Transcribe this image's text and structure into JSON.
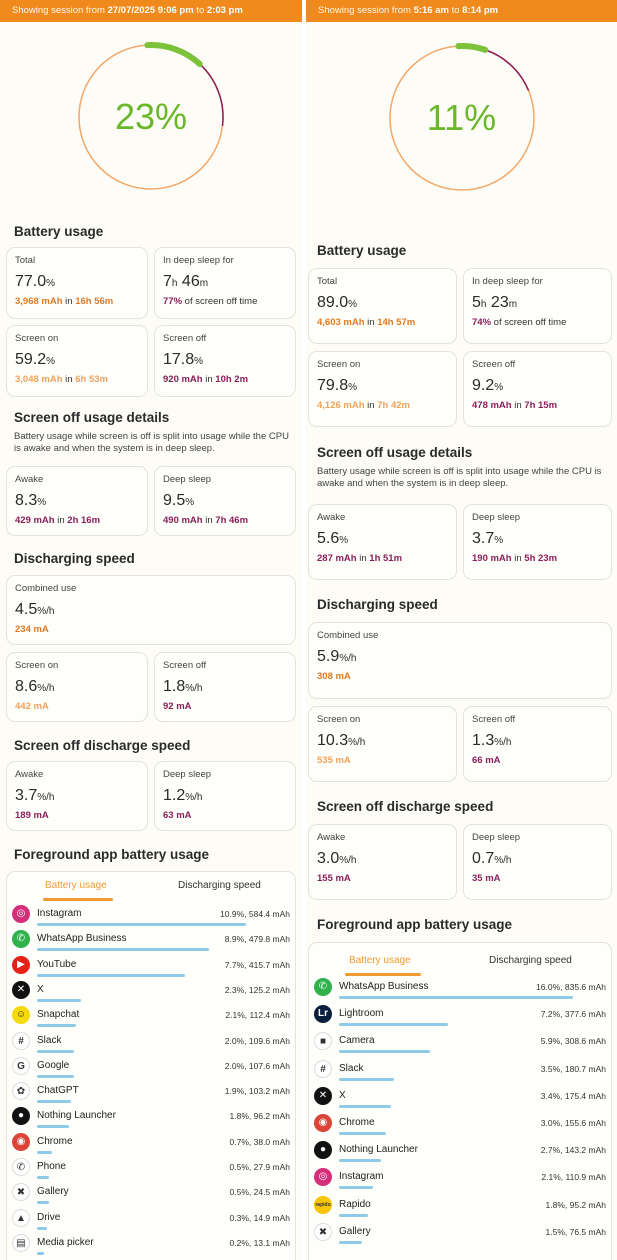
{
  "colors": {
    "orange": "#f08a1c",
    "ring_green": "#7cc23a",
    "ring_orange": "#f2a868",
    "ring_magenta": "#8a1e58",
    "bar_blue": "#8ecbe6"
  },
  "left": {
    "session_prefix": "Showing session from ",
    "session_start": "27/07/2025 9:06 pm",
    "session_to": " to ",
    "session_end": "2:03 pm",
    "ring_percent": "23%",
    "ring_fraction": 0.23,
    "battery_usage_title": "Battery usage",
    "total": {
      "label": "Total",
      "value": "77.0",
      "unit": "%",
      "mah": "3,968 mAh",
      "in": " in ",
      "dur": "16h 56m"
    },
    "deep_sleep": {
      "label": "In deep sleep for",
      "h": "7",
      "hu": "h",
      "m": " 46",
      "mu": "m",
      "pct": "77%",
      "rest": " of screen off time"
    },
    "screen_on": {
      "label": "Screen on",
      "value": "59.2",
      "unit": "%",
      "mah": "3,048 mAh",
      "in": " in ",
      "dur": "6h 53m"
    },
    "screen_off": {
      "label": "Screen off",
      "value": "17.8",
      "unit": "%",
      "mah": "920 mAh",
      "in": " in ",
      "dur": "10h 2m"
    },
    "so_details_title": "Screen off usage details",
    "so_details_desc": "Battery usage while screen is off is split into usage while the CPU is awake and when the system is in deep sleep.",
    "awake": {
      "label": "Awake",
      "value": "8.3",
      "unit": "%",
      "mah": "429 mAh",
      "in": " in ",
      "dur": "2h 16m"
    },
    "deep": {
      "label": "Deep sleep",
      "value": "9.5",
      "unit": "%",
      "mah": "490 mAh",
      "in": " in ",
      "dur": "7h 46m"
    },
    "discharging_title": "Discharging speed",
    "combined": {
      "label": "Combined use",
      "value": "4.5",
      "unit": "%/h",
      "ma": "234 mA"
    },
    "ds_screen_on": {
      "label": "Screen on",
      "value": "8.6",
      "unit": "%/h",
      "ma": "442 mA"
    },
    "ds_screen_off": {
      "label": "Screen off",
      "value": "1.8",
      "unit": "%/h",
      "ma": "92 mA"
    },
    "so_discharge_title": "Screen off discharge speed",
    "sod_awake": {
      "label": "Awake",
      "value": "3.7",
      "unit": "%/h",
      "ma": "189 mA"
    },
    "sod_deep": {
      "label": "Deep sleep",
      "value": "1.2",
      "unit": "%/h",
      "ma": "63 mA"
    },
    "fg_title": "Foreground app battery usage",
    "tab_active": "Battery usage",
    "tab_inactive": "Discharging speed",
    "apps": [
      {
        "name": "Instagram",
        "value": "10.9%, 584.4 mAh",
        "bar": 0.85,
        "icon": "instagram-icon",
        "color": "#d62f7a",
        "glyph": "◎"
      },
      {
        "name": "WhatsApp Business",
        "value": "8.9%, 479.8 mAh",
        "bar": 0.7,
        "icon": "whatsapp-business-icon",
        "color": "#2fb24c",
        "glyph": "✆"
      },
      {
        "name": "YouTube",
        "value": "7.7%, 415.7 mAh",
        "bar": 0.6,
        "icon": "youtube-icon",
        "color": "#e62117",
        "glyph": "▶"
      },
      {
        "name": "X",
        "value": "2.3%, 125.2 mAh",
        "bar": 0.18,
        "icon": "x-icon",
        "color": "#111111",
        "glyph": "✕"
      },
      {
        "name": "Snapchat",
        "value": "2.1%, 112.4 mAh",
        "bar": 0.16,
        "icon": "snapchat-icon",
        "color": "#f5d90a",
        "glyph": "☺"
      },
      {
        "name": "Slack",
        "value": "2.0%, 109.6 mAh",
        "bar": 0.15,
        "icon": "slack-icon",
        "color": "#ffffff",
        "glyph": "#"
      },
      {
        "name": "Google",
        "value": "2.0%, 107.6 mAh",
        "bar": 0.15,
        "icon": "google-icon",
        "color": "#ffffff",
        "glyph": "G"
      },
      {
        "name": "ChatGPT",
        "value": "1.9%, 103.2 mAh",
        "bar": 0.14,
        "icon": "chatgpt-icon",
        "color": "#ffffff",
        "glyph": "✿"
      },
      {
        "name": "Nothing Launcher",
        "value": "1.8%, 96.2 mAh",
        "bar": 0.13,
        "icon": "nothing-launcher-icon",
        "color": "#111111",
        "glyph": "●"
      },
      {
        "name": "Chrome",
        "value": "0.7%, 38.0 mAh",
        "bar": 0.06,
        "icon": "chrome-icon",
        "color": "#db4437",
        "glyph": "◉"
      },
      {
        "name": "Phone",
        "value": "0.5%, 27.9 mAh",
        "bar": 0.05,
        "icon": "phone-icon",
        "color": "#ffffff",
        "glyph": "✆"
      },
      {
        "name": "Gallery",
        "value": "0.5%, 24.5 mAh",
        "bar": 0.05,
        "icon": "gallery-icon",
        "color": "#ffffff",
        "glyph": "✖"
      },
      {
        "name": "Drive",
        "value": "0.3%, 14.9 mAh",
        "bar": 0.04,
        "icon": "drive-icon",
        "color": "#ffffff",
        "glyph": "▲"
      },
      {
        "name": "Media picker",
        "value": "0.2%, 13.1 mAh",
        "bar": 0.03,
        "icon": "media-picker-icon",
        "color": "#ffffff",
        "glyph": "▤"
      }
    ]
  },
  "right": {
    "session_prefix": "Showing session from ",
    "session_start": "5:16 am",
    "session_to": " to ",
    "session_end": "8:14 pm",
    "ring_percent": "11%",
    "ring_fraction": 0.11,
    "battery_usage_title": "Battery usage",
    "total": {
      "label": "Total",
      "value": "89.0",
      "unit": "%",
      "mah": "4,603 mAh",
      "in": " in ",
      "dur": "14h 57m"
    },
    "deep_sleep": {
      "label": "In deep sleep for",
      "h": "5",
      "hu": "h",
      "m": " 23",
      "mu": "m",
      "pct": "74%",
      "rest": " of screen off time"
    },
    "screen_on": {
      "label": "Screen on",
      "value": "79.8",
      "unit": "%",
      "mah": "4,126 mAh",
      "in": " in ",
      "dur": "7h 42m"
    },
    "screen_off": {
      "label": "Screen off",
      "value": "9.2",
      "unit": "%",
      "mah": "478 mAh",
      "in": " in ",
      "dur": "7h 15m"
    },
    "so_details_title": "Screen off usage details",
    "so_details_desc": "Battery usage while screen is off is split into usage while the CPU is awake and when the system is in deep sleep.",
    "awake": {
      "label": "Awake",
      "value": "5.6",
      "unit": "%",
      "mah": "287 mAh",
      "in": " in ",
      "dur": "1h 51m"
    },
    "deep": {
      "label": "Deep sleep",
      "value": "3.7",
      "unit": "%",
      "mah": "190 mAh",
      "in": " in ",
      "dur": "5h 23m"
    },
    "discharging_title": "Discharging speed",
    "combined": {
      "label": "Combined use",
      "value": "5.9",
      "unit": "%/h",
      "ma": "308 mA"
    },
    "ds_screen_on": {
      "label": "Screen on",
      "value": "10.3",
      "unit": "%/h",
      "ma": "535 mA"
    },
    "ds_screen_off": {
      "label": "Screen off",
      "value": "1.3",
      "unit": "%/h",
      "ma": "66 mA"
    },
    "so_discharge_title": "Screen off discharge speed",
    "sod_awake": {
      "label": "Awake",
      "value": "3.0",
      "unit": "%/h",
      "ma": "155 mA"
    },
    "sod_deep": {
      "label": "Deep sleep",
      "value": "0.7",
      "unit": "%/h",
      "ma": "35 mA"
    },
    "fg_title": "Foreground app battery usage",
    "tab_active": "Battery usage",
    "tab_inactive": "Discharging speed",
    "apps": [
      {
        "name": "WhatsApp Business",
        "value": "16.0%, 835.6 mAh",
        "bar": 0.9,
        "icon": "whatsapp-business-icon",
        "color": "#2fb24c",
        "glyph": "✆"
      },
      {
        "name": "Lightroom",
        "value": "7.2%, 377.6 mAh",
        "bar": 0.42,
        "icon": "lightroom-icon",
        "color": "#0a1f3c",
        "glyph": "Lr"
      },
      {
        "name": "Camera",
        "value": "5.9%, 308.6 mAh",
        "bar": 0.35,
        "icon": "camera-icon",
        "color": "#ffffff",
        "glyph": "■"
      },
      {
        "name": "Slack",
        "value": "3.5%, 180.7 mAh",
        "bar": 0.21,
        "icon": "slack-icon",
        "color": "#ffffff",
        "glyph": "#"
      },
      {
        "name": "X",
        "value": "3.4%, 175.4 mAh",
        "bar": 0.2,
        "icon": "x-icon",
        "color": "#111111",
        "glyph": "✕"
      },
      {
        "name": "Chrome",
        "value": "3.0%, 155.6 mAh",
        "bar": 0.18,
        "icon": "chrome-icon",
        "color": "#db4437",
        "glyph": "◉"
      },
      {
        "name": "Nothing Launcher",
        "value": "2.7%, 143.2 mAh",
        "bar": 0.16,
        "icon": "nothing-launcher-icon",
        "color": "#111111",
        "glyph": "●"
      },
      {
        "name": "Instagram",
        "value": "2.1%, 110.9 mAh",
        "bar": 0.13,
        "icon": "instagram-icon",
        "color": "#d62f7a",
        "glyph": "◎"
      },
      {
        "name": "Rapido",
        "value": "1.8%, 95.2 mAh",
        "bar": 0.11,
        "icon": "rapido-icon",
        "color": "#f7c600",
        "glyph": "rapido"
      },
      {
        "name": "Gallery",
        "value": "1.5%, 76.5 mAh",
        "bar": 0.09,
        "icon": "gallery-icon",
        "color": "#ffffff",
        "glyph": "✖"
      }
    ]
  }
}
